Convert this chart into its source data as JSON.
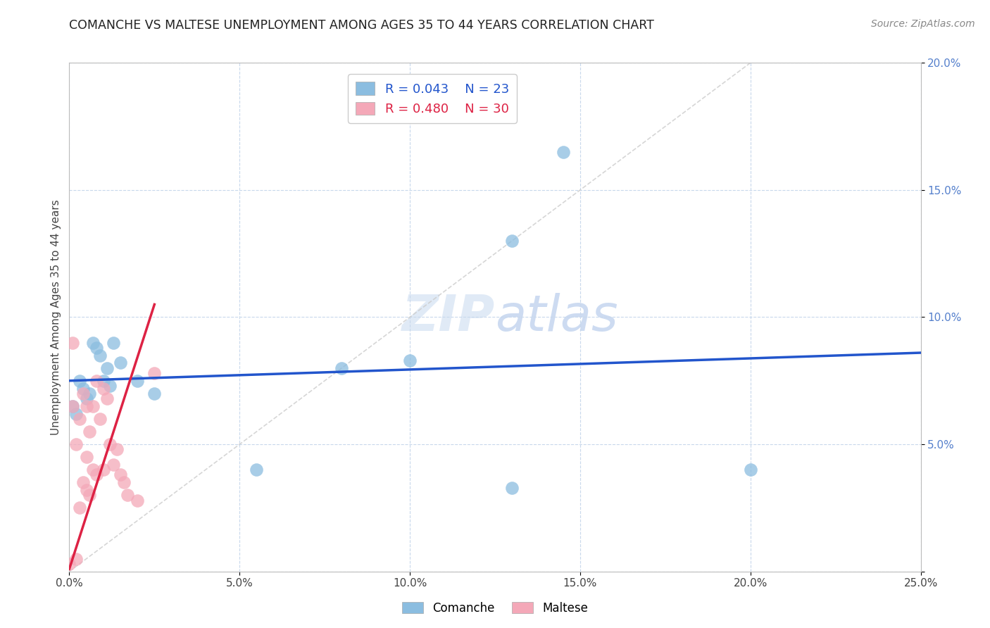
{
  "title": "COMANCHE VS MALTESE UNEMPLOYMENT AMONG AGES 35 TO 44 YEARS CORRELATION CHART",
  "source": "Source: ZipAtlas.com",
  "ylabel": "Unemployment Among Ages 35 to 44 years",
  "xlim": [
    0,
    0.25
  ],
  "ylim": [
    0,
    0.2
  ],
  "xticks": [
    0.0,
    0.05,
    0.1,
    0.15,
    0.2,
    0.25
  ],
  "yticks": [
    0.0,
    0.05,
    0.1,
    0.15,
    0.2
  ],
  "xtick_labels": [
    "0.0%",
    "5.0%",
    "10.0%",
    "15.0%",
    "20.0%",
    "25.0%"
  ],
  "ytick_labels": [
    "",
    "5.0%",
    "10.0%",
    "15.0%",
    "20.0%"
  ],
  "comanche_R": 0.043,
  "comanche_N": 23,
  "maltese_R": 0.48,
  "maltese_N": 30,
  "comanche_color": "#8bbde0",
  "maltese_color": "#f4a8b8",
  "comanche_line_color": "#2255cc",
  "maltese_line_color": "#dd2244",
  "diagonal_color": "#cccccc",
  "background_color": "#ffffff",
  "grid_color": "#c8d8ec",
  "comanche_x": [
    0.001,
    0.002,
    0.003,
    0.004,
    0.005,
    0.006,
    0.007,
    0.008,
    0.009,
    0.01,
    0.011,
    0.012,
    0.013,
    0.015,
    0.02,
    0.025,
    0.055,
    0.08,
    0.1,
    0.13,
    0.145,
    0.2,
    0.13
  ],
  "comanche_y": [
    0.065,
    0.062,
    0.075,
    0.072,
    0.068,
    0.07,
    0.09,
    0.088,
    0.085,
    0.075,
    0.08,
    0.073,
    0.09,
    0.082,
    0.075,
    0.07,
    0.04,
    0.08,
    0.083,
    0.13,
    0.165,
    0.04,
    0.033
  ],
  "maltese_x": [
    0.0,
    0.001,
    0.001,
    0.002,
    0.002,
    0.003,
    0.003,
    0.004,
    0.004,
    0.005,
    0.005,
    0.005,
    0.006,
    0.006,
    0.007,
    0.007,
    0.008,
    0.008,
    0.009,
    0.01,
    0.01,
    0.011,
    0.012,
    0.013,
    0.014,
    0.015,
    0.016,
    0.017,
    0.02,
    0.025
  ],
  "maltese_y": [
    0.003,
    0.065,
    0.09,
    0.005,
    0.05,
    0.025,
    0.06,
    0.035,
    0.07,
    0.032,
    0.045,
    0.065,
    0.03,
    0.055,
    0.04,
    0.065,
    0.038,
    0.075,
    0.06,
    0.04,
    0.072,
    0.068,
    0.05,
    0.042,
    0.048,
    0.038,
    0.035,
    0.03,
    0.028,
    0.078
  ],
  "watermark_zip_color": "#d8e4f4",
  "watermark_atlas_color": "#c0d4ec"
}
